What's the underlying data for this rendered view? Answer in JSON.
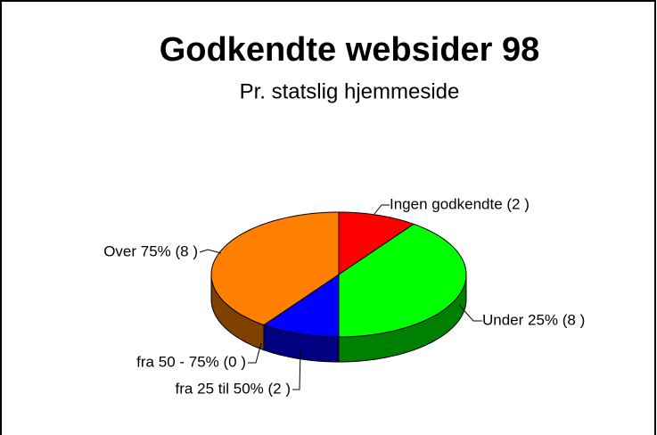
{
  "chart_data": {
    "type": "pie",
    "title": "Godkendte websider  98",
    "subtitle": "Pr. statslig hjemmeside",
    "categories": [
      "Ingen godkendte (2 )",
      "Under 25% (8 )",
      "fra 25 til 50% (2 )",
      "fra 50 - 75% (0 )",
      "Over 75% (8 )"
    ],
    "values": [
      2,
      8,
      2,
      0,
      8
    ],
    "colors": [
      "#ff0000",
      "#00ff00",
      "#0000ff",
      "#ffff00",
      "#ff8000"
    ],
    "side_colors": [
      "#800000",
      "#008000",
      "#000080",
      "#808000",
      "#804000"
    ]
  }
}
